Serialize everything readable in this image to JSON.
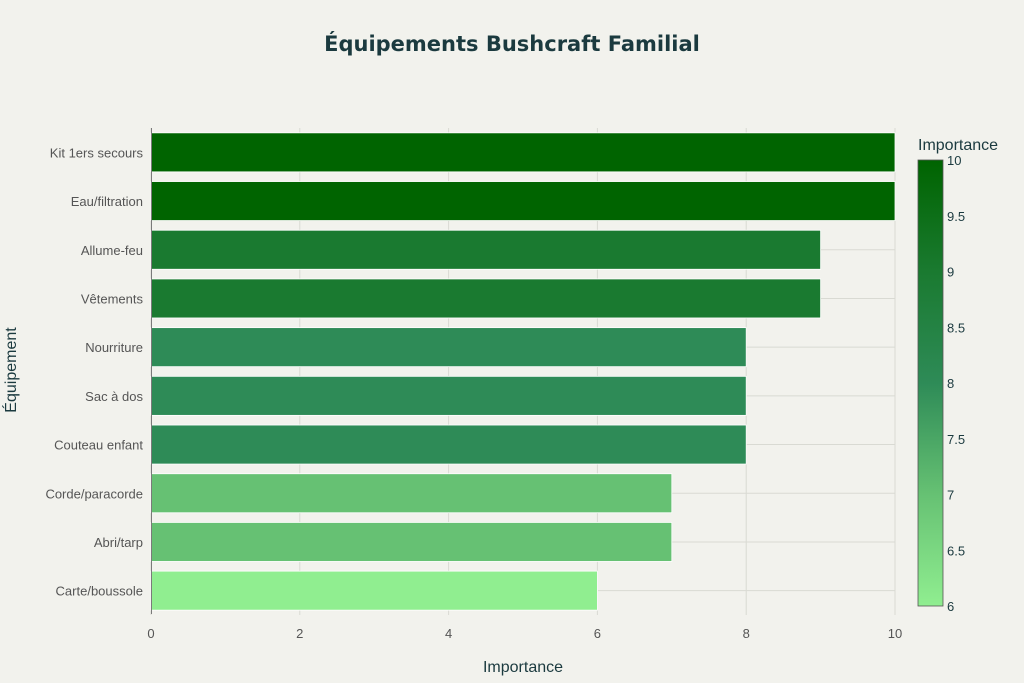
{
  "chart_data": {
    "type": "bar",
    "orientation": "horizontal",
    "title": "Équipements Bushcraft Familial",
    "xlabel": "Importance",
    "ylabel": "Équipement",
    "xlim": [
      0,
      10
    ],
    "x_ticks": [
      0,
      2,
      4,
      6,
      8,
      10
    ],
    "grid": true,
    "categories": [
      "Kit 1ers secours",
      "Eau/filtration",
      "Allume-feu",
      "Vêtements",
      "Nourriture",
      "Sac à dos",
      "Couteau enfant",
      "Corde/paracorde",
      "Abri/tarp",
      "Carte/boussole"
    ],
    "values": [
      10,
      10,
      9,
      9,
      8,
      8,
      8,
      7,
      7,
      6
    ],
    "colorbar": {
      "title": "Importance",
      "range": [
        6,
        10
      ],
      "ticks": [
        "10",
        "9.5",
        "9",
        "8.5",
        "8",
        "7.5",
        "7",
        "6.5",
        "6"
      ],
      "color_low": "#90ee90",
      "color_high": "#006400"
    }
  }
}
